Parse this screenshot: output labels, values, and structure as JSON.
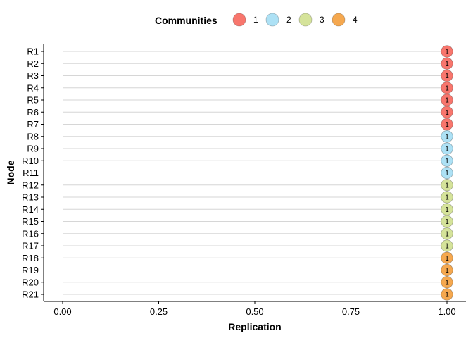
{
  "chart_data": {
    "type": "scatter",
    "title": "",
    "xlabel": "Replication",
    "ylabel": "Node",
    "xlim": [
      0,
      1
    ],
    "x_ticks": [
      "0.00",
      "0.25",
      "0.50",
      "0.75",
      "1.00"
    ],
    "x_tick_values": [
      0,
      0.25,
      0.5,
      0.75,
      1.0
    ],
    "grid": "horizontal",
    "legend": {
      "title": "Communities",
      "position": "top",
      "entries": [
        {
          "label": "1",
          "color": "#F8766D"
        },
        {
          "label": "2",
          "color": "#ADE1F5"
        },
        {
          "label": "3",
          "color": "#D5E39A"
        },
        {
          "label": "4",
          "color": "#F5A84F"
        }
      ]
    },
    "nodes": [
      {
        "name": "R1",
        "community": "1",
        "x": 1.0,
        "label": "1"
      },
      {
        "name": "R2",
        "community": "1",
        "x": 1.0,
        "label": "1"
      },
      {
        "name": "R3",
        "community": "1",
        "x": 1.0,
        "label": "1"
      },
      {
        "name": "R4",
        "community": "1",
        "x": 1.0,
        "label": "1"
      },
      {
        "name": "R5",
        "community": "1",
        "x": 1.0,
        "label": "1"
      },
      {
        "name": "R6",
        "community": "1",
        "x": 1.0,
        "label": "1"
      },
      {
        "name": "R7",
        "community": "1",
        "x": 1.0,
        "label": "1"
      },
      {
        "name": "R8",
        "community": "2",
        "x": 1.0,
        "label": "1"
      },
      {
        "name": "R9",
        "community": "2",
        "x": 1.0,
        "label": "1"
      },
      {
        "name": "R10",
        "community": "2",
        "x": 1.0,
        "label": "1"
      },
      {
        "name": "R11",
        "community": "2",
        "x": 1.0,
        "label": "1"
      },
      {
        "name": "R12",
        "community": "3",
        "x": 1.0,
        "label": "1"
      },
      {
        "name": "R13",
        "community": "3",
        "x": 1.0,
        "label": "1"
      },
      {
        "name": "R14",
        "community": "3",
        "x": 1.0,
        "label": "1"
      },
      {
        "name": "R15",
        "community": "3",
        "x": 1.0,
        "label": "1"
      },
      {
        "name": "R16",
        "community": "3",
        "x": 1.0,
        "label": "1"
      },
      {
        "name": "R17",
        "community": "3",
        "x": 1.0,
        "label": "1"
      },
      {
        "name": "R18",
        "community": "4",
        "x": 1.0,
        "label": "1"
      },
      {
        "name": "R19",
        "community": "4",
        "x": 1.0,
        "label": "1"
      },
      {
        "name": "R20",
        "community": "4",
        "x": 1.0,
        "label": "1"
      },
      {
        "name": "R21",
        "community": "4",
        "x": 1.0,
        "label": "1"
      }
    ]
  }
}
